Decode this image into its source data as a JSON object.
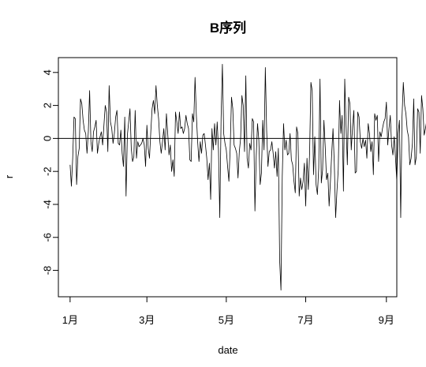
{
  "chart_data": {
    "type": "line",
    "title": "B序列",
    "xlabel": "date",
    "ylabel": "r",
    "x_ticks": [
      "1月",
      "3月",
      "5月",
      "7月",
      "9月"
    ],
    "x_tick_dates": [
      "2023-01-01",
      "2023-03-01",
      "2023-05-01",
      "2023-07-01",
      "2023-09-01"
    ],
    "y_ticks": [
      -8,
      -6,
      -4,
      -2,
      0,
      2,
      4
    ],
    "xlim": [
      "2022-12-23",
      "2023-09-09"
    ],
    "ylim": [
      -9.6,
      4.9
    ],
    "reference_line": {
      "y": 0
    },
    "grid": false,
    "legend": "none",
    "series": [
      {
        "x_start": "2023-01-01",
        "x_step_days": 1,
        "values": [
          -1.6,
          -2.9,
          -1.2,
          1.3,
          1.2,
          -2.8,
          -1.1,
          -0.6,
          2.4,
          2.1,
          1.1,
          0.5,
          0.3,
          -0.9,
          0.4,
          2.9,
          -0.2,
          -0.8,
          0.4,
          0.7,
          1.1,
          -0.9,
          -0.3,
          0.1,
          0.4,
          -0.4,
          0.8,
          2.0,
          1.6,
          -0.8,
          3.2,
          1.0,
          0.6,
          -0.3,
          0.3,
          1.3,
          1.7,
          -0.3,
          -0.4,
          0.5,
          -0.9,
          -1.7,
          1.3,
          -3.5,
          0.2,
          1.0,
          1.8,
          -0.6,
          -1.4,
          -1.1,
          1.7,
          -1.2,
          -0.2,
          -0.5,
          -0.4,
          -0.3,
          0.0,
          -0.4,
          -1.7,
          0.8,
          -0.6,
          -1.2,
          0.4,
          1.8,
          2.3,
          1.5,
          3.2,
          2.0,
          1.2,
          -0.2,
          -0.9,
          -0.2,
          0.6,
          -0.7,
          1.5,
          0.3,
          -1.0,
          -0.4,
          -2.0,
          -1.3,
          -2.3,
          1.6,
          1.0,
          0.3,
          1.6,
          0.6,
          0.7,
          0.3,
          0.6,
          1.4,
          0.9,
          0.6,
          -1.3,
          -1.4,
          1.5,
          1.0,
          3.7,
          1.4,
          -0.2,
          -1.4,
          -0.2,
          -0.9,
          0.2,
          0.3,
          -0.4,
          -1.2,
          -2.5,
          -1.5,
          -3.7,
          0.6,
          -0.7,
          0.9,
          -0.4,
          1.0,
          -0.7,
          -4.8,
          1.2,
          4.5,
          0.3,
          -0.3,
          -0.7,
          -1.7,
          -2.6,
          -0.6,
          2.5,
          1.8,
          -0.4,
          -0.6,
          -0.9,
          -2.4,
          -0.8,
          0.0,
          2.6,
          2.0,
          -0.8,
          3.8,
          -1.2,
          -1.8,
          -0.3,
          -0.7,
          1.2,
          1.0,
          -4.4,
          -1.1,
          0.9,
          -0.1,
          -2.8,
          -2.1,
          1.1,
          -0.7,
          4.3,
          0.5,
          -1.7,
          -0.8,
          -0.7,
          -0.2,
          -0.9,
          -1.8,
          -0.8,
          -2.3,
          -0.6,
          -7.4,
          -9.2,
          -2.3,
          0.9,
          -0.7,
          -0.1,
          -1.0,
          -0.9,
          0.3,
          -1.3,
          -1.6,
          -2.6,
          -3.3,
          0.7,
          0.3,
          -3.5,
          -2.4,
          -3.1,
          -2.6,
          -1.5,
          -4.1,
          -1.2,
          -3.1,
          -0.9,
          3.4,
          2.9,
          -2.2,
          0.1,
          -2.8,
          -3.4,
          -1.8,
          3.6,
          -2.7,
          -1.9,
          1.1,
          -0.5,
          -2.5,
          -2.1,
          -4.1,
          -2.6,
          -0.9,
          0.6,
          -1.6,
          -4.8,
          -3.2,
          -1.9,
          2.3,
          0.3,
          1.4,
          -3.2,
          3.6,
          0.8,
          -1.6,
          2.5,
          2.1,
          -0.7,
          0.7,
          1.7,
          -2.1,
          -2.0,
          1.6,
          1.3,
          -0.2,
          -0.6,
          0.0,
          -0.5,
          -0.1,
          -1.2,
          0.9,
          0.3,
          -0.8,
          -0.2,
          -2.2,
          1.5,
          1.1,
          1.4,
          -1.4,
          0.4,
          0.1,
          0.6,
          1.0,
          1.2,
          2.2,
          -0.4,
          0.6,
          1.4,
          -0.4,
          -1.0,
          0.1,
          -1.2,
          -2.6,
          0.3,
          1.1,
          -4.8,
          1.3,
          3.4,
          2.0,
          1.5,
          0.5,
          0.1,
          -1.6,
          -1.2,
          -0.3,
          2.4,
          -1.6,
          -1.1,
          1.8,
          1.6,
          -0.9,
          2.6,
          1.8,
          0.2,
          0.6,
          1.1,
          -2.2,
          -1.0,
          -0.4
        ]
      }
    ]
  }
}
